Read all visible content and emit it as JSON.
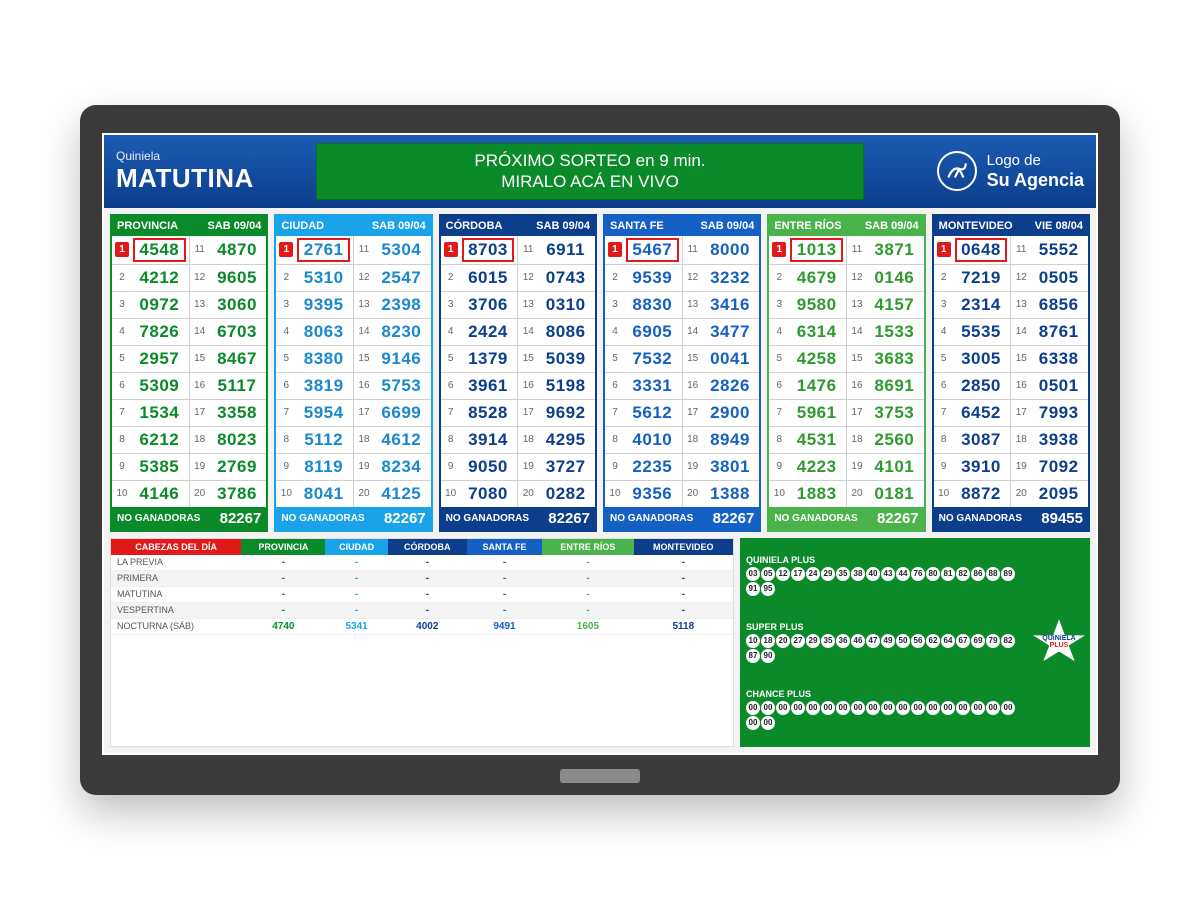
{
  "header": {
    "pre": "Quiniela",
    "main": "MATUTINA",
    "banner_l1": "PRÓXIMO SORTEO en 9 min.",
    "banner_l2": "MIRALO ACÁ EN VIVO",
    "agency_l1": "Logo de",
    "agency_l2": "Su Agencia"
  },
  "colors": {
    "header_bg": "#0d3e8c",
    "banner_bg": "#0b8a2a",
    "red": "#e11919"
  },
  "panels": [
    {
      "name": "PROVINCIA",
      "date": "SAB 09/04",
      "color": "#0b8a2a",
      "text": "#0b8a2a",
      "nums": [
        "4548",
        "4212",
        "0972",
        "7826",
        "2957",
        "5309",
        "1534",
        "6212",
        "5385",
        "4146",
        "4870",
        "9605",
        "3060",
        "6703",
        "8467",
        "5117",
        "3358",
        "8023",
        "2769",
        "3786"
      ],
      "foot_label": "NO GANADORAS",
      "foot": "82267"
    },
    {
      "name": "CIUDAD",
      "date": "SAB 09/04",
      "color": "#1aa3e8",
      "text": "#1a88cf",
      "nums": [
        "2761",
        "5310",
        "9395",
        "8063",
        "8380",
        "3819",
        "5954",
        "5112",
        "8119",
        "8041",
        "5304",
        "2547",
        "2398",
        "8230",
        "9146",
        "5753",
        "6699",
        "4612",
        "8234",
        "4125"
      ],
      "foot_label": "NO GANADORAS",
      "foot": "82267"
    },
    {
      "name": "CÓRDOBA",
      "date": "SAB 09/04",
      "color": "#0d3e8c",
      "text": "#0d3e8c",
      "nums": [
        "8703",
        "6015",
        "3706",
        "2424",
        "1379",
        "3961",
        "8528",
        "3914",
        "9050",
        "7080",
        "6911",
        "0743",
        "0310",
        "8086",
        "5039",
        "5198",
        "9692",
        "4295",
        "3727",
        "0282"
      ],
      "foot_label": "NO GANADORAS",
      "foot": "82267"
    },
    {
      "name": "SANTA FE",
      "date": "SAB 09/04",
      "color": "#1560c4",
      "text": "#1560c4",
      "nums": [
        "5467",
        "9539",
        "8830",
        "6905",
        "7532",
        "3331",
        "5612",
        "4010",
        "2235",
        "9356",
        "8000",
        "3232",
        "3416",
        "3477",
        "0041",
        "2826",
        "2900",
        "8949",
        "3801",
        "1388"
      ],
      "foot_label": "NO GANADORAS",
      "foot": "82267"
    },
    {
      "name": "ENTRE RÍOS",
      "date": "SAB 09/04",
      "color": "#4bb34b",
      "text": "#2f9a2f",
      "nums": [
        "1013",
        "4679",
        "9580",
        "6314",
        "4258",
        "1476",
        "5961",
        "4531",
        "4223",
        "1883",
        "3871",
        "0146",
        "4157",
        "1533",
        "3683",
        "8691",
        "3753",
        "2560",
        "4101",
        "0181"
      ],
      "foot_label": "NO GANADORAS",
      "foot": "82267"
    },
    {
      "name": "MONTEVIDEO",
      "date": "VIE 08/04",
      "color": "#0d3e8c",
      "text": "#0d3e8c",
      "nums": [
        "0648",
        "7219",
        "2314",
        "5535",
        "3005",
        "2850",
        "6452",
        "3087",
        "3910",
        "8872",
        "5552",
        "0505",
        "6856",
        "8761",
        "6338",
        "0501",
        "7993",
        "3938",
        "7092",
        "2095"
      ],
      "foot_label": "NO GANADORAS",
      "foot": "89455"
    }
  ],
  "cabezas": {
    "title": "CABEZAS DEL DÍA",
    "cols": [
      "PROVINCIA",
      "CIUDAD",
      "CÓRDOBA",
      "SANTA FE",
      "ENTRE RÍOS",
      "MONTEVIDEO"
    ],
    "col_colors": [
      "#0b8a2a",
      "#1aa3e8",
      "#0d3e8c",
      "#1560c4",
      "#4bb34b",
      "#0d3e8c"
    ],
    "rows": [
      {
        "label": "LA PREVIA",
        "vals": [
          "-",
          "-",
          "-",
          "-",
          "-",
          "-"
        ]
      },
      {
        "label": "PRIMERA",
        "vals": [
          "-",
          "-",
          "-",
          "-",
          "-",
          "-"
        ]
      },
      {
        "label": "MATUTINA",
        "vals": [
          "-",
          "-",
          "-",
          "-",
          "-",
          "-"
        ]
      },
      {
        "label": "VESPERTINA",
        "vals": [
          "-",
          "-",
          "-",
          "-",
          "-",
          "-"
        ]
      },
      {
        "label": "NOCTURNA (SÁB)",
        "vals": [
          "4740",
          "5341",
          "4002",
          "9491",
          "1605",
          "5118"
        ]
      }
    ]
  },
  "plus": {
    "logo_l1": "QUiNiELA",
    "logo_l2": "PLUS",
    "groups": [
      {
        "label": "QUINIELA PLUS",
        "balls": [
          "03",
          "05",
          "12",
          "17",
          "24",
          "29",
          "35",
          "38",
          "40",
          "43",
          "44",
          "76",
          "80",
          "81",
          "82",
          "86",
          "88",
          "89",
          "91",
          "95"
        ]
      },
      {
        "label": "SUPER PLUS",
        "balls": [
          "10",
          "18",
          "20",
          "27",
          "29",
          "35",
          "36",
          "46",
          "47",
          "49",
          "50",
          "56",
          "62",
          "64",
          "67",
          "69",
          "79",
          "82",
          "87",
          "90"
        ]
      },
      {
        "label": "CHANCE PLUS",
        "balls": [
          "00",
          "00",
          "00",
          "00",
          "00",
          "00",
          "00",
          "00",
          "00",
          "00",
          "00",
          "00",
          "00",
          "00",
          "00",
          "00",
          "00",
          "00",
          "00",
          "00"
        ]
      }
    ]
  }
}
